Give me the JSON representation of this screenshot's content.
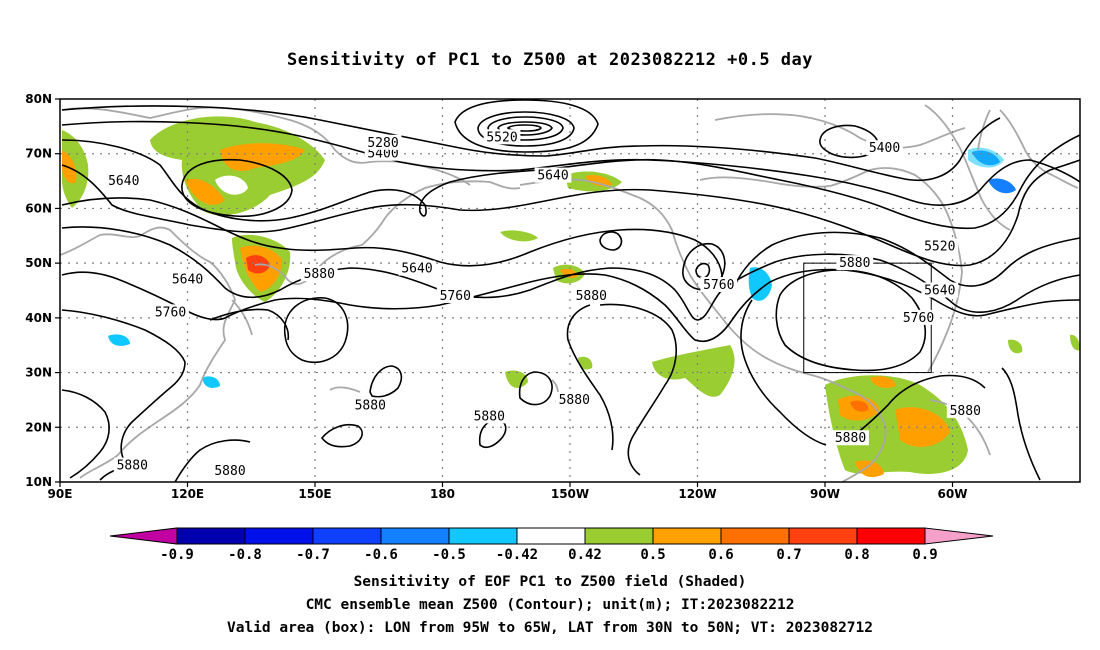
{
  "title": "Sensitivity of PC1 to Z500 at 2023082212 +0.5 day",
  "lat_labels": [
    "80N",
    "70N",
    "60N",
    "50N",
    "40N",
    "30N",
    "20N",
    "10N"
  ],
  "lon_labels": [
    "90E",
    "120E",
    "150E",
    "180",
    "150W",
    "120W",
    "90W",
    "60W"
  ],
  "contour_labels": [
    {
      "text": "5640",
      "lon": 105,
      "lat": 65
    },
    {
      "text": "5400",
      "lon": 166,
      "lat": 70
    },
    {
      "text": "5280",
      "lon": 166,
      "lat": 72
    },
    {
      "text": "5520",
      "lon": 194,
      "lat": 73
    },
    {
      "text": "5640",
      "lon": 206,
      "lat": 66
    },
    {
      "text": "5400",
      "lon": 284,
      "lat": 71
    },
    {
      "text": "5520",
      "lon": 297,
      "lat": 53
    },
    {
      "text": "5640",
      "lon": 297,
      "lat": 45
    },
    {
      "text": "5760",
      "lon": 292,
      "lat": 40
    },
    {
      "text": "5880",
      "lon": 303,
      "lat": 23
    },
    {
      "text": "5880",
      "lon": 277,
      "lat": 50
    },
    {
      "text": "5880",
      "lon": 276,
      "lat": 18
    },
    {
      "text": "5760",
      "lon": 245,
      "lat": 46
    },
    {
      "text": "5880",
      "lon": 215,
      "lat": 44
    },
    {
      "text": "5640",
      "lon": 174,
      "lat": 49
    },
    {
      "text": "5760",
      "lon": 183,
      "lat": 44
    },
    {
      "text": "5880",
      "lon": 151,
      "lat": 48
    },
    {
      "text": "5640",
      "lon": 120,
      "lat": 47
    },
    {
      "text": "5760",
      "lon": 116,
      "lat": 41
    },
    {
      "text": "5880",
      "lon": 163,
      "lat": 24
    },
    {
      "text": "5880",
      "lon": 191,
      "lat": 22
    },
    {
      "text": "5880",
      "lon": 211,
      "lat": 25
    },
    {
      "text": "5880",
      "lon": 107,
      "lat": 13
    },
    {
      "text": "5880",
      "lon": 130,
      "lat": 12
    }
  ],
  "colorbar": {
    "labels": [
      "-0.9",
      "-0.8",
      "-0.7",
      "-0.6",
      "-0.5",
      "-0.42",
      "0.42",
      "0.5",
      "0.6",
      "0.7",
      "0.8",
      "0.9"
    ],
    "colors": [
      "#c000a0",
      "#0000b0",
      "#0010e8",
      "#1040ff",
      "#1480ff",
      "#10c8ff",
      "#ffffff",
      "#9acd32",
      "#ffa000",
      "#ff7000",
      "#ff4010",
      "#ff0000",
      "#f4a0c8"
    ]
  },
  "valid_box": {
    "lon_min": 265,
    "lon_max": 295,
    "lat_min": 30,
    "lat_max": 50
  },
  "colors": {
    "contour": "#000000",
    "land": "#a8a8a8",
    "grid": "#808080",
    "frame": "#000000"
  },
  "captions": {
    "line1": "Sensitivity of EOF PC1 to Z500 field (Shaded)",
    "line2": "CMC ensemble mean Z500 (Contour); unit(m); IT:2023082212",
    "line3": "Valid area (box): LON from 95W to 65W, LAT from 30N to 50N; VT: 2023082712"
  }
}
